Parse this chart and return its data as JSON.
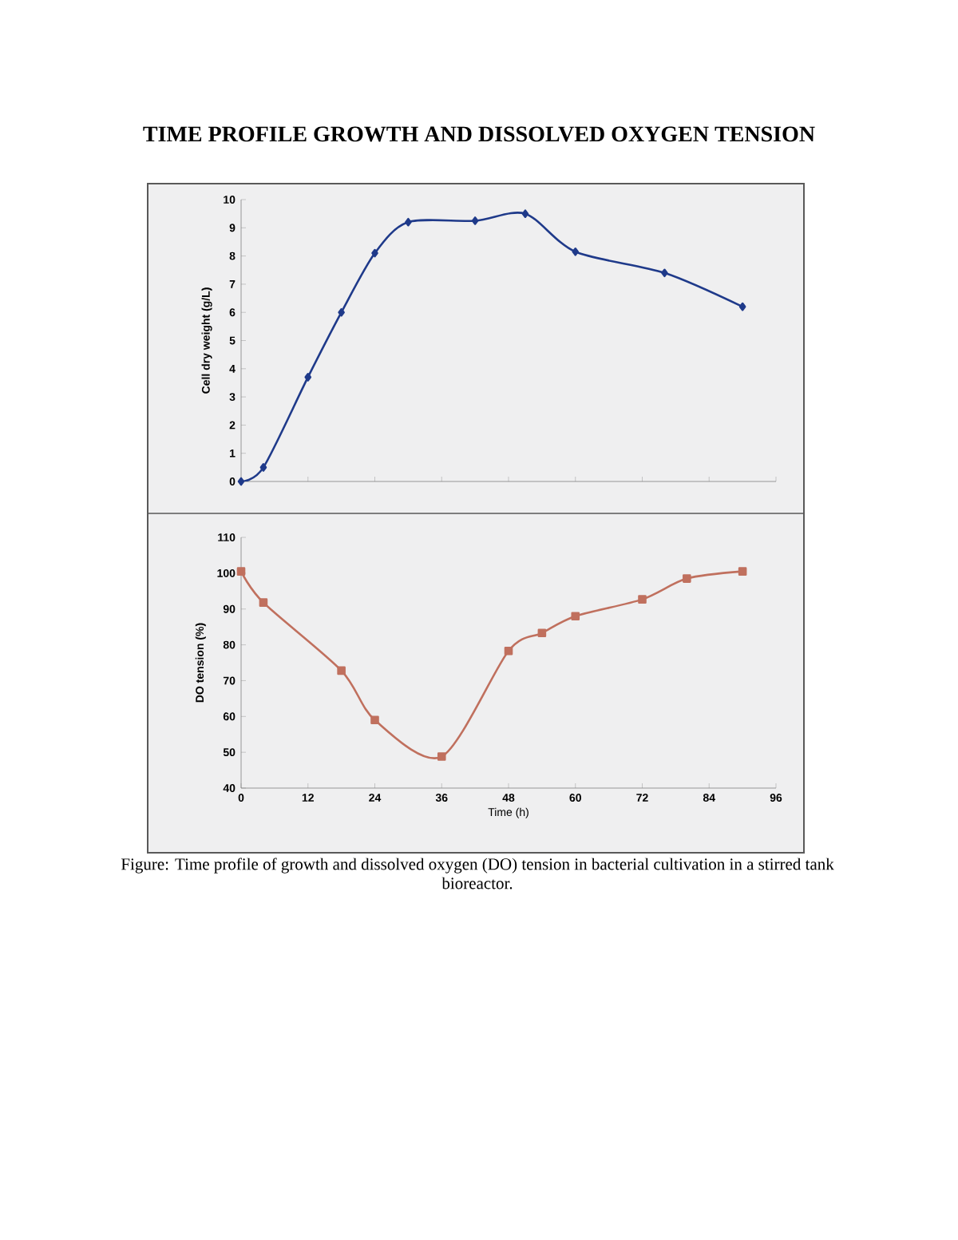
{
  "chart_data": [
    {
      "type": "line",
      "title": "TIME PROFILE GROWTH AND DISSOLVED OXYGEN TENSION",
      "ylabel": "Cell dry weight (g/L)",
      "xlim": [
        0,
        96
      ],
      "xticks": [
        0,
        12,
        24,
        36,
        48,
        60,
        72,
        84,
        96
      ],
      "ylim": [
        0,
        10
      ],
      "yticks": [
        0,
        1,
        2,
        3,
        4,
        5,
        6,
        7,
        8,
        9,
        10
      ],
      "tick_labels": "y",
      "marker": "diamond",
      "grid": false,
      "series": [
        {
          "color": "#1f3a8a",
          "x": [
            0,
            4,
            12,
            18,
            24,
            30,
            42,
            51,
            60,
            76,
            90
          ],
          "values": [
            0,
            0.5,
            3.7,
            6.0,
            8.1,
            9.2,
            9.25,
            9.5,
            8.15,
            7.4,
            6.2
          ]
        }
      ]
    },
    {
      "type": "line",
      "xlabel": "Time (h)",
      "ylabel": "DO tension (%)",
      "xlim": [
        0,
        96
      ],
      "xticks": [
        0,
        12,
        24,
        36,
        48,
        60,
        72,
        84,
        96
      ],
      "ylim": [
        40,
        110
      ],
      "yticks": [
        40,
        50,
        60,
        70,
        80,
        90,
        100,
        110
      ],
      "marker": "square",
      "grid": false,
      "annotations": [
        "Figure: Time profile of growth and dissolved oxygen (DO) tension in bacterial cultivation in a stirred tank bioreactor."
      ],
      "series": [
        {
          "color": "#c0705e",
          "x": [
            0,
            4,
            18,
            24,
            36,
            48,
            54,
            60,
            72,
            80,
            90
          ],
          "values": [
            100.5,
            91.8,
            72.8,
            59,
            48.8,
            78.3,
            83.3,
            88,
            92.7,
            98.5,
            100.5
          ]
        }
      ]
    }
  ]
}
